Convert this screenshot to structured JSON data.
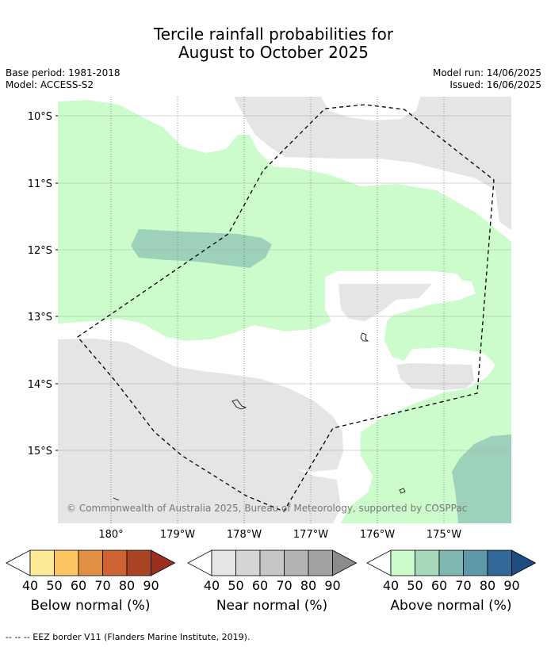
{
  "header": {
    "title_line1": "Tercile rainfall probabilities for",
    "title_line2": "August to October 2025",
    "base_period": "Base period: 1981-2018",
    "model": "Model: ACCESS-S2",
    "model_run": "Model run: 14/06/2025",
    "issued": "Issued: 16/06/2025"
  },
  "map": {
    "lat_labels": [
      "10°S",
      "11°S",
      "12°S",
      "13°S",
      "14°S",
      "15°S"
    ],
    "lon_labels": [
      "180°",
      "179°W",
      "178°W",
      "177°W",
      "176°W",
      "175°W"
    ],
    "copyright": "© Commonwealth of Australia 2025, Bureau of Meteorology, supported by COSPPac",
    "colors": {
      "above_40": "#ccfccc",
      "above_50": "#9ed1ba",
      "near_40": "#e5e5e5",
      "background": "#ffffff"
    }
  },
  "legends": [
    {
      "title": "Below normal (%)",
      "ticks": [
        "40",
        "50",
        "60",
        "70",
        "80",
        "90"
      ],
      "colors": [
        "#fdeb9a",
        "#fdc663",
        "#e28f46",
        "#cd6332",
        "#a94425",
        "#993020"
      ]
    },
    {
      "title": "Near normal (%)",
      "ticks": [
        "40",
        "50",
        "60",
        "70",
        "80",
        "90"
      ],
      "colors": [
        "#e5e5e5",
        "#d6d6d6",
        "#c6c6c6",
        "#b4b4b4",
        "#a3a3a3",
        "#8c8c8c"
      ]
    },
    {
      "title": "Above normal (%)",
      "ticks": [
        "40",
        "50",
        "60",
        "70",
        "80",
        "90"
      ],
      "colors": [
        "#ccfccc",
        "#a6d9ba",
        "#7fb8b0",
        "#5d98a8",
        "#306998",
        "#1c4c80"
      ]
    }
  ],
  "footnote": "--  --  -- EEZ border V11 (Flanders Marine Institute, 2019)."
}
